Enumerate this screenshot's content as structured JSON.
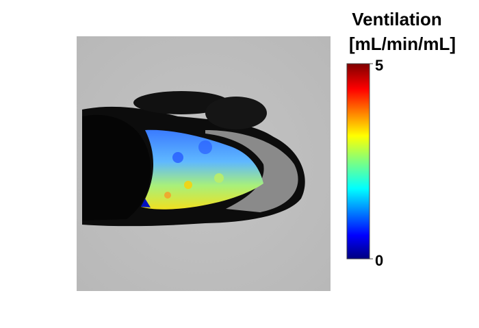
{
  "colorbar": {
    "title": [
      "Ventilation",
      "[mL/min/mL]"
    ],
    "lim": [
      0,
      5
    ],
    "ticks": [
      0,
      5
    ]
  }
}
